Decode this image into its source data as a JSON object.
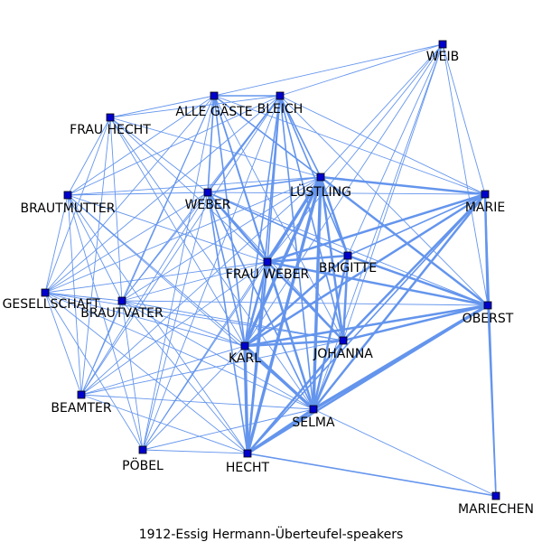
{
  "caption": "1912-Essig  Hermann-Überteufel-speakers",
  "colors": {
    "edge": "#6495ed",
    "node_fill": "#0000cd",
    "node_stroke": "#000000",
    "label": "#000000",
    "background": "#ffffff"
  },
  "nodes": [
    {
      "id": "WEIB",
      "label": "WEIB"
    },
    {
      "id": "ALLE_GAESTE",
      "label": "ALLE GÄSTE"
    },
    {
      "id": "BLEICH",
      "label": "BLEICH"
    },
    {
      "id": "FRAU_HECHT",
      "label": "FRAU HECHT"
    },
    {
      "id": "LUESTLING",
      "label": "LÜSTLING"
    },
    {
      "id": "WEBER",
      "label": "WEBER"
    },
    {
      "id": "MARIE",
      "label": "MARIE"
    },
    {
      "id": "BRAUTMUTTER",
      "label": "BRAUTMUTTER"
    },
    {
      "id": "BRIGITTE",
      "label": "BRIGITTE"
    },
    {
      "id": "FRAU_WEBER",
      "label": "FRAU WEBER"
    },
    {
      "id": "GESELLSCHAFT",
      "label": "E GESELLSCHAFT"
    },
    {
      "id": "BRAUTVATER",
      "label": "BRAUTVATER"
    },
    {
      "id": "OBERST",
      "label": "OBERST"
    },
    {
      "id": "JOHANNA",
      "label": "JOHANNA"
    },
    {
      "id": "KARL",
      "label": "KARL"
    },
    {
      "id": "BEAMTER",
      "label": "BEAMTER"
    },
    {
      "id": "SELMA",
      "label": "SELMA"
    },
    {
      "id": "POEBEL",
      "label": "PÖBEL"
    },
    {
      "id": "HECHT",
      "label": "HECHT"
    },
    {
      "id": "MARIECHEN",
      "label": "MARIECHEN"
    }
  ],
  "edges": [
    [
      "LUESTLING",
      "FRAU_WEBER",
      4
    ],
    [
      "LUESTLING",
      "KARL",
      4
    ],
    [
      "LUESTLING",
      "SELMA",
      4
    ],
    [
      "LUESTLING",
      "JOHANNA",
      3
    ],
    [
      "LUESTLING",
      "HECHT",
      4
    ],
    [
      "LUESTLING",
      "OBERST",
      3
    ],
    [
      "LUESTLING",
      "MARIE",
      3
    ],
    [
      "LUESTLING",
      "BRIGITTE",
      3
    ],
    [
      "LUESTLING",
      "WEBER",
      2
    ],
    [
      "LUESTLING",
      "ALLE_GAESTE",
      2
    ],
    [
      "LUESTLING",
      "BLEICH",
      2
    ],
    [
      "LUESTLING",
      "WEIB",
      1
    ],
    [
      "FRAU_WEBER",
      "KARL",
      3
    ],
    [
      "FRAU_WEBER",
      "SELMA",
      3
    ],
    [
      "FRAU_WEBER",
      "HECHT",
      3
    ],
    [
      "FRAU_WEBER",
      "JOHANNA",
      3
    ],
    [
      "FRAU_WEBER",
      "OBERST",
      3
    ],
    [
      "FRAU_WEBER",
      "BRIGITTE",
      3
    ],
    [
      "FRAU_WEBER",
      "MARIE",
      3
    ],
    [
      "FRAU_WEBER",
      "WEBER",
      3
    ],
    [
      "FRAU_WEBER",
      "ALLE_GAESTE",
      2
    ],
    [
      "FRAU_WEBER",
      "BLEICH",
      2
    ],
    [
      "KARL",
      "SELMA",
      4
    ],
    [
      "KARL",
      "HECHT",
      4
    ],
    [
      "KARL",
      "JOHANNA",
      3
    ],
    [
      "KARL",
      "OBERST",
      3
    ],
    [
      "KARL",
      "MARIE",
      3
    ],
    [
      "KARL",
      "BRIGITTE",
      3
    ],
    [
      "KARL",
      "WEBER",
      2
    ],
    [
      "KARL",
      "BLEICH",
      2
    ],
    [
      "SELMA",
      "HECHT",
      4
    ],
    [
      "SELMA",
      "JOHANNA",
      3
    ],
    [
      "SELMA",
      "OBERST",
      4
    ],
    [
      "SELMA",
      "MARIE",
      3
    ],
    [
      "SELMA",
      "BRIGITTE",
      3
    ],
    [
      "SELMA",
      "WEBER",
      2
    ],
    [
      "SELMA",
      "BLEICH",
      2
    ],
    [
      "SELMA",
      "ALLE_GAESTE",
      2
    ],
    [
      "JOHANNA",
      "HECHT",
      3
    ],
    [
      "JOHANNA",
      "OBERST",
      3
    ],
    [
      "JOHANNA",
      "MARIE",
      3
    ],
    [
      "JOHANNA",
      "BRIGITTE",
      3
    ],
    [
      "HECHT",
      "OBERST",
      3
    ],
    [
      "HECHT",
      "MARIE",
      2
    ],
    [
      "HECHT",
      "WEBER",
      2
    ],
    [
      "HECHT",
      "BLEICH",
      2
    ],
    [
      "HECHT",
      "MARIECHEN",
      2
    ],
    [
      "OBERST",
      "MARIE",
      3
    ],
    [
      "OBERST",
      "BRIGITTE",
      3
    ],
    [
      "OBERST",
      "MARIECHEN",
      2
    ],
    [
      "OBERST",
      "WEIB",
      1
    ],
    [
      "MARIE",
      "BRIGITTE",
      2
    ],
    [
      "MARIE",
      "MARIECHEN",
      2
    ],
    [
      "MARIE",
      "WEIB",
      1
    ],
    [
      "WEBER",
      "ALLE_GAESTE",
      2
    ],
    [
      "WEBER",
      "BLEICH",
      2
    ],
    [
      "WEBER",
      "BRIGITTE",
      2
    ],
    [
      "ALLE_GAESTE",
      "BLEICH",
      2
    ],
    [
      "BLEICH",
      "BRIGITTE",
      2
    ],
    [
      "BLEICH",
      "JOHANNA",
      2
    ],
    [
      "ALLE_GAESTE",
      "KARL",
      2
    ],
    [
      "WEIB",
      "ALLE_GAESTE",
      1
    ],
    [
      "WEIB",
      "BLEICH",
      1
    ],
    [
      "WEIB",
      "BRIGITTE",
      1
    ],
    [
      "WEIB",
      "JOHANNA",
      1
    ],
    [
      "WEIB",
      "SELMA",
      1
    ],
    [
      "WEIB",
      "KARL",
      1
    ],
    [
      "WEIB",
      "FRAU_WEBER",
      1
    ],
    [
      "FRAU_HECHT",
      "ALLE_GAESTE",
      1
    ],
    [
      "FRAU_HECHT",
      "BLEICH",
      1
    ],
    [
      "FRAU_HECHT",
      "WEBER",
      1
    ],
    [
      "FRAU_HECHT",
      "FRAU_WEBER",
      1
    ],
    [
      "FRAU_HECHT",
      "KARL",
      1
    ],
    [
      "FRAU_HECHT",
      "SELMA",
      1
    ],
    [
      "FRAU_HECHT",
      "BRAUTMUTTER",
      1
    ],
    [
      "FRAU_HECHT",
      "GESELLSCHAFT",
      1
    ],
    [
      "FRAU_HECHT",
      "BRAUTVATER",
      1
    ],
    [
      "FRAU_HECHT",
      "BEAMTER",
      1
    ],
    [
      "FRAU_HECHT",
      "LUESTLING",
      1
    ],
    [
      "BRAUTMUTTER",
      "ALLE_GAESTE",
      1
    ],
    [
      "BRAUTMUTTER",
      "BLEICH",
      1
    ],
    [
      "BRAUTMUTTER",
      "WEBER",
      1
    ],
    [
      "BRAUTMUTTER",
      "FRAU_WEBER",
      1
    ],
    [
      "BRAUTMUTTER",
      "KARL",
      1
    ],
    [
      "BRAUTMUTTER",
      "SELMA",
      1
    ],
    [
      "BRAUTMUTTER",
      "GESELLSCHAFT",
      1
    ],
    [
      "BRAUTMUTTER",
      "BRAUTVATER",
      1
    ],
    [
      "BRAUTMUTTER",
      "BEAMTER",
      1
    ],
    [
      "BRAUTMUTTER",
      "POEBEL",
      1
    ],
    [
      "BRAUTMUTTER",
      "HECHT",
      1
    ],
    [
      "BRAUTMUTTER",
      "LUESTLING",
      1
    ],
    [
      "GESELLSCHAFT",
      "ALLE_GAESTE",
      1
    ],
    [
      "GESELLSCHAFT",
      "BLEICH",
      1
    ],
    [
      "GESELLSCHAFT",
      "WEBER",
      1
    ],
    [
      "GESELLSCHAFT",
      "FRAU_WEBER",
      1
    ],
    [
      "GESELLSCHAFT",
      "KARL",
      1
    ],
    [
      "GESELLSCHAFT",
      "SELMA",
      1
    ],
    [
      "GESELLSCHAFT",
      "BRAUTVATER",
      1
    ],
    [
      "GESELLSCHAFT",
      "BEAMTER",
      1
    ],
    [
      "GESELLSCHAFT",
      "POEBEL",
      1
    ],
    [
      "GESELLSCHAFT",
      "HECHT",
      1
    ],
    [
      "GESELLSCHAFT",
      "LUESTLING",
      1
    ],
    [
      "GESELLSCHAFT",
      "JOHANNA",
      1
    ],
    [
      "BRAUTVATER",
      "ALLE_GAESTE",
      1
    ],
    [
      "BRAUTVATER",
      "BLEICH",
      1
    ],
    [
      "BRAUTVATER",
      "WEBER",
      1
    ],
    [
      "BRAUTVATER",
      "FRAU_WEBER",
      1
    ],
    [
      "BRAUTVATER",
      "KARL",
      1
    ],
    [
      "BRAUTVATER",
      "SELMA",
      1
    ],
    [
      "BRAUTVATER",
      "BEAMTER",
      1
    ],
    [
      "BRAUTVATER",
      "POEBEL",
      1
    ],
    [
      "BRAUTVATER",
      "HECHT",
      1
    ],
    [
      "BRAUTVATER",
      "LUESTLING",
      1
    ],
    [
      "BRAUTVATER",
      "JOHANNA",
      1
    ],
    [
      "BRAUTVATER",
      "OBERST",
      1
    ],
    [
      "BEAMTER",
      "ALLE_GAESTE",
      1
    ],
    [
      "BEAMTER",
      "BLEICH",
      1
    ],
    [
      "BEAMTER",
      "WEBER",
      1
    ],
    [
      "BEAMTER",
      "FRAU_WEBER",
      1
    ],
    [
      "BEAMTER",
      "KARL",
      1
    ],
    [
      "BEAMTER",
      "SELMA",
      1
    ],
    [
      "BEAMTER",
      "HECHT",
      1
    ],
    [
      "BEAMTER",
      "LUESTLING",
      1
    ],
    [
      "BEAMTER",
      "JOHANNA",
      1
    ],
    [
      "POEBEL",
      "ALLE_GAESTE",
      1
    ],
    [
      "POEBEL",
      "BLEICH",
      1
    ],
    [
      "POEBEL",
      "WEBER",
      1
    ],
    [
      "POEBEL",
      "FRAU_WEBER",
      1
    ],
    [
      "POEBEL",
      "KARL",
      1
    ],
    [
      "POEBEL",
      "SELMA",
      1
    ],
    [
      "POEBEL",
      "HECHT",
      1
    ],
    [
      "POEBEL",
      "LUESTLING",
      1
    ],
    [
      "ALLE_GAESTE",
      "JOHANNA",
      1
    ],
    [
      "ALLE_GAESTE",
      "OBERST",
      1
    ],
    [
      "ALLE_GAESTE",
      "MARIE",
      1
    ],
    [
      "BLEICH",
      "OBERST",
      1
    ],
    [
      "BLEICH",
      "MARIE",
      1
    ],
    [
      "WEBER",
      "JOHANNA",
      1
    ],
    [
      "WEBER",
      "OBERST",
      1
    ],
    [
      "WEBER",
      "MARIE",
      1
    ],
    [
      "BRIGITTE",
      "JOHANNA",
      1
    ],
    [
      "SELMA",
      "MARIECHEN",
      1
    ]
  ]
}
